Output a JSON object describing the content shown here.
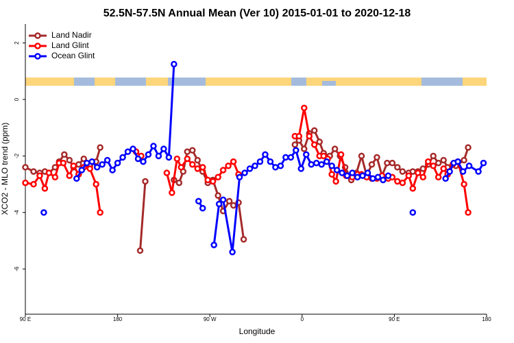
{
  "chart_data": {
    "type": "line",
    "title": "52.5N-57.5N Annual Mean (Ver 10)   2015-01-01 to 2020-12-18",
    "xlabel": "Longitude",
    "ylabel": "XCO2 - MLO trend (ppm)",
    "xlim": [
      90,
      540
    ],
    "ylim": [
      -7.6,
      2.67
    ],
    "xticks": [
      {
        "value": 90,
        "label": "90 E"
      },
      180,
      {
        "value": 270,
        "label": "90 W"
      },
      {
        "value": 360,
        "label": "0"
      },
      {
        "value": 450,
        "label": "90 E"
      },
      {
        "value": 540,
        "label": "180"
      }
    ],
    "yticks": [
      2,
      0,
      -2,
      -4,
      -6
    ],
    "legend": "top-left",
    "series": [
      {
        "name": "Land Nadir",
        "color": "#a52a2a",
        "x": [
          90,
          98,
          104,
          109,
          113,
          119,
          123,
          128,
          133,
          137,
          142,
          147,
          153,
          159,
          163,
          180,
          202,
          207,
          220,
          235,
          240,
          244,
          248,
          253,
          258,
          263,
          268,
          273,
          278,
          283,
          289,
          293,
          298,
          303,
          320,
          353,
          357,
          362,
          367,
          372,
          377,
          381,
          387,
          392,
          397,
          402,
          408,
          413,
          418,
          423,
          428,
          433,
          438,
          443,
          448,
          453,
          458,
          464,
          468,
          473,
          478,
          483,
          488,
          493,
          498,
          502,
          510,
          518,
          522
        ],
        "values": [
          -2.4,
          -2.55,
          -2.6,
          -2.55,
          -2.6,
          -2.4,
          -2.2,
          -1.95,
          -2.15,
          -2.4,
          -2.3,
          -2.1,
          -2.35,
          -2.2,
          -1.7,
          null,
          -5.35,
          -2.9,
          null,
          -2.85,
          -2.95,
          -2.55,
          -1.85,
          -1.8,
          -2.15,
          -2.55,
          -2.95,
          -2.85,
          -3.4,
          -3.95,
          -3.6,
          -3.75,
          -3.65,
          -4.95,
          null,
          -1.6,
          -1.45,
          -1.75,
          -1.2,
          -1.1,
          -1.5,
          -1.9,
          -2.0,
          -1.75,
          -2.0,
          -2.4,
          -2.85,
          -2.6,
          -2.0,
          -2.7,
          -2.3,
          -2.05,
          -2.7,
          -2.25,
          -2.25,
          -2.4,
          -2.55,
          -2.6,
          -2.55,
          -2.55,
          -2.45,
          -2.3,
          -2.0,
          -2.25,
          -2.15,
          -2.4,
          -2.35,
          -2.15,
          -1.7
        ]
      },
      {
        "name": "Land Glint",
        "color": "#ff0000",
        "x": [
          90,
          98,
          104,
          109,
          113,
          119,
          123,
          127,
          133,
          137,
          142,
          147,
          153,
          159,
          163,
          180,
          198,
          203,
          215,
          228,
          233,
          238,
          242,
          248,
          253,
          258,
          263,
          268,
          273,
          278,
          283,
          288,
          293,
          298,
          320,
          353,
          357,
          362,
          367,
          372,
          377,
          381,
          385,
          389,
          393,
          398,
          403,
          409,
          414,
          418,
          423,
          428,
          433,
          438,
          444,
          448,
          453,
          458,
          464,
          468,
          473,
          478,
          483,
          488,
          493,
          498,
          502,
          507,
          512,
          518,
          522
        ],
        "values": [
          -2.95,
          -3.0,
          -2.7,
          -3.15,
          -2.6,
          -2.75,
          -2.25,
          -2.25,
          -2.7,
          -2.35,
          -2.65,
          -2.4,
          -2.45,
          -3.0,
          -4.0,
          null,
          -1.85,
          -2.0,
          null,
          -2.6,
          -3.3,
          -2.1,
          -2.4,
          -2.1,
          -2.3,
          -2.45,
          -2.4,
          -2.85,
          -2.9,
          -2.75,
          -2.5,
          -2.35,
          -2.2,
          -2.65,
          null,
          -1.3,
          -1.3,
          -0.3,
          -1.3,
          -1.6,
          -2.0,
          -2.0,
          -2.1,
          -2.65,
          -2.9,
          -1.95,
          -2.7,
          -2.75,
          -2.65,
          -2.65,
          -2.75,
          -2.8,
          -2.8,
          -2.7,
          -2.8,
          -2.75,
          -2.9,
          -2.95,
          -2.7,
          -3.15,
          -2.6,
          -2.75,
          -2.2,
          -2.35,
          -2.75,
          -2.45,
          -2.65,
          -2.3,
          -2.2,
          -3.0,
          -4.0
        ]
      },
      {
        "name": "Ocean Glint",
        "color": "#0000ff",
        "x": [
          108,
          124,
          140,
          145,
          150,
          155,
          160,
          165,
          170,
          175,
          180,
          185,
          190,
          195,
          200,
          205,
          210,
          215,
          220,
          225,
          230,
          235,
          247,
          259,
          263,
          268,
          274,
          279,
          283,
          292,
          299,
          304,
          309,
          314,
          319,
          324,
          329,
          334,
          339,
          344,
          349,
          354,
          359,
          364,
          369,
          374,
          379,
          384,
          389,
          394,
          399,
          404,
          409,
          414,
          419,
          424,
          429,
          434,
          439,
          444,
          456,
          468,
          480,
          500,
          504,
          508,
          512,
          517,
          523,
          532,
          537
        ],
        "values": [
          -4.0,
          null,
          -2.8,
          -2.5,
          -2.25,
          -2.2,
          -2.4,
          -2.3,
          -2.15,
          -2.5,
          -2.25,
          -2.05,
          -1.85,
          -1.75,
          -2.1,
          -2.2,
          -1.95,
          -1.65,
          -2.0,
          -1.75,
          -2.05,
          1.25,
          null,
          -3.6,
          -3.85,
          null,
          -5.15,
          -3.7,
          -3.55,
          -5.4,
          -2.75,
          -2.6,
          -2.45,
          -2.35,
          -2.2,
          -1.95,
          -2.2,
          -2.4,
          -2.35,
          -2.05,
          -2.05,
          -1.8,
          -2.45,
          -1.95,
          -2.3,
          -2.25,
          -2.3,
          -2.2,
          -2.35,
          -2.5,
          -2.6,
          -2.7,
          -2.6,
          -2.75,
          -2.7,
          -2.6,
          -2.8,
          -2.75,
          -2.85,
          -2.7,
          null,
          -4.0,
          null,
          -2.8,
          -2.55,
          -2.25,
          -2.2,
          -2.55,
          -2.35,
          -2.55,
          -2.25
        ]
      }
    ]
  }
}
